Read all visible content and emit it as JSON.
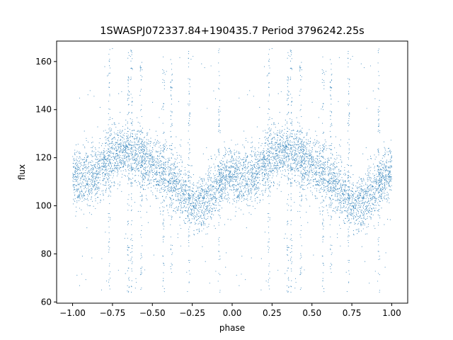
{
  "chart_data": {
    "type": "scatter",
    "title": "1SWASPJ072337.84+190435.7 Period 3796242.25s",
    "xlabel": "phase",
    "ylabel": "flux",
    "xlim": [
      -1.1,
      1.1
    ],
    "ylim": [
      59.5,
      168.5
    ],
    "xticks": [
      -1.0,
      -0.75,
      -0.5,
      -0.25,
      0.0,
      0.25,
      0.5,
      0.75,
      1.0
    ],
    "xtick_labels": [
      "−1.00",
      "−0.75",
      "−0.50",
      "−0.25",
      "0.00",
      "0.25",
      "0.50",
      "0.75",
      "1.00"
    ],
    "yticks": [
      60,
      80,
      100,
      120,
      140,
      160
    ],
    "ytick_labels": [
      "60",
      "80",
      "100",
      "120",
      "140",
      "160"
    ],
    "grid": false,
    "point_color": "#1f77b4",
    "series": [
      {
        "profile_phase": [
          0.0,
          0.1,
          0.18,
          0.22,
          0.25,
          0.3,
          0.35,
          0.4,
          0.45,
          0.5,
          0.55,
          0.6,
          0.65,
          0.7,
          0.75,
          0.8,
          0.85,
          0.9,
          0.95,
          1.0
        ],
        "profile_flux": [
          112,
          112,
          115,
          118,
          121,
          123,
          123,
          122,
          119,
          117,
          114,
          112,
          109,
          105,
          102,
          100,
          104,
          108,
          112,
          115
        ],
        "scatter_sd": 6,
        "spike_phases": [
          0.23,
          0.35,
          0.37,
          0.43,
          0.57,
          0.62,
          0.73,
          0.92
        ],
        "spike_flux_range": [
          64,
          166
        ]
      }
    ]
  }
}
